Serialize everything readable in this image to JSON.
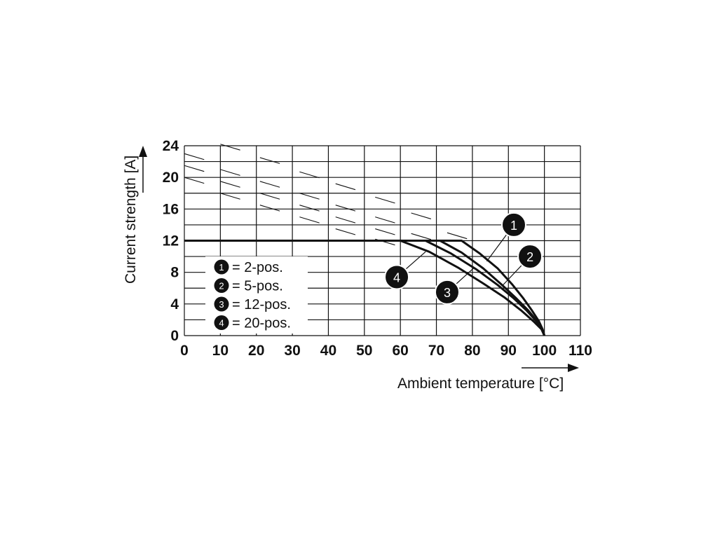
{
  "chart_data": {
    "type": "line",
    "xlabel": "Ambient temperature [°C]",
    "ylabel": "Current strength [A]",
    "xlim": [
      0,
      110
    ],
    "ylim": [
      0,
      24
    ],
    "xticks": [
      "0",
      "10",
      "20",
      "30",
      "40",
      "50",
      "60",
      "70",
      "80",
      "90",
      "100",
      "110"
    ],
    "yticks": [
      "0",
      "4",
      "8",
      "12",
      "16",
      "20",
      "24"
    ],
    "grid": true,
    "legend_position": "inside-left",
    "series": [
      {
        "name": "1 = 2-pos.",
        "badge": "1",
        "legend_text": "= 2-pos.",
        "x": [
          0,
          77,
          82,
          87,
          91,
          94,
          96.5,
          98.5,
          99.5,
          100
        ],
        "y": [
          12,
          12,
          10.4,
          8.5,
          6.5,
          4.8,
          3.2,
          1.8,
          0.8,
          0
        ]
      },
      {
        "name": "2 = 5-pos.",
        "badge": "2",
        "legend_text": "= 5-pos.",
        "x": [
          0,
          71,
          77,
          83,
          88,
          92,
          95.5,
          98,
          99.4,
          100
        ],
        "y": [
          12,
          12,
          10.5,
          8.5,
          6.5,
          4.8,
          3.2,
          1.8,
          0.8,
          0
        ]
      },
      {
        "name": "3 = 12-pos.",
        "badge": "3",
        "legend_text": "= 12-pos.",
        "x": [
          0,
          67,
          74,
          81,
          87,
          91.5,
          95,
          97.8,
          99.3,
          100
        ],
        "y": [
          12,
          12,
          10.4,
          8.4,
          6.4,
          4.7,
          3.2,
          1.8,
          0.8,
          0
        ]
      },
      {
        "name": "4 = 20-pos.",
        "badge": "4",
        "legend_text": "= 20-pos.",
        "x": [
          0,
          60,
          68,
          76,
          83,
          89,
          93.5,
          97,
          99.2,
          100
        ],
        "y": [
          12,
          12,
          10.6,
          8.6,
          6.6,
          4.8,
          3.2,
          1.8,
          0.8,
          0
        ]
      }
    ],
    "callouts": [
      {
        "label": "1",
        "x": 91.5,
        "y": 14,
        "target_x": 84,
        "target_y": 9.4
      },
      {
        "label": "2",
        "x": 96,
        "y": 10,
        "target_x": 88.5,
        "target_y": 6.4
      },
      {
        "label": "3",
        "x": 73,
        "y": 5.5,
        "target_x": 80.5,
        "target_y": 8.6
      },
      {
        "label": "4",
        "x": 59,
        "y": 7.4,
        "target_x": 67,
        "target_y": 10.6
      }
    ]
  }
}
